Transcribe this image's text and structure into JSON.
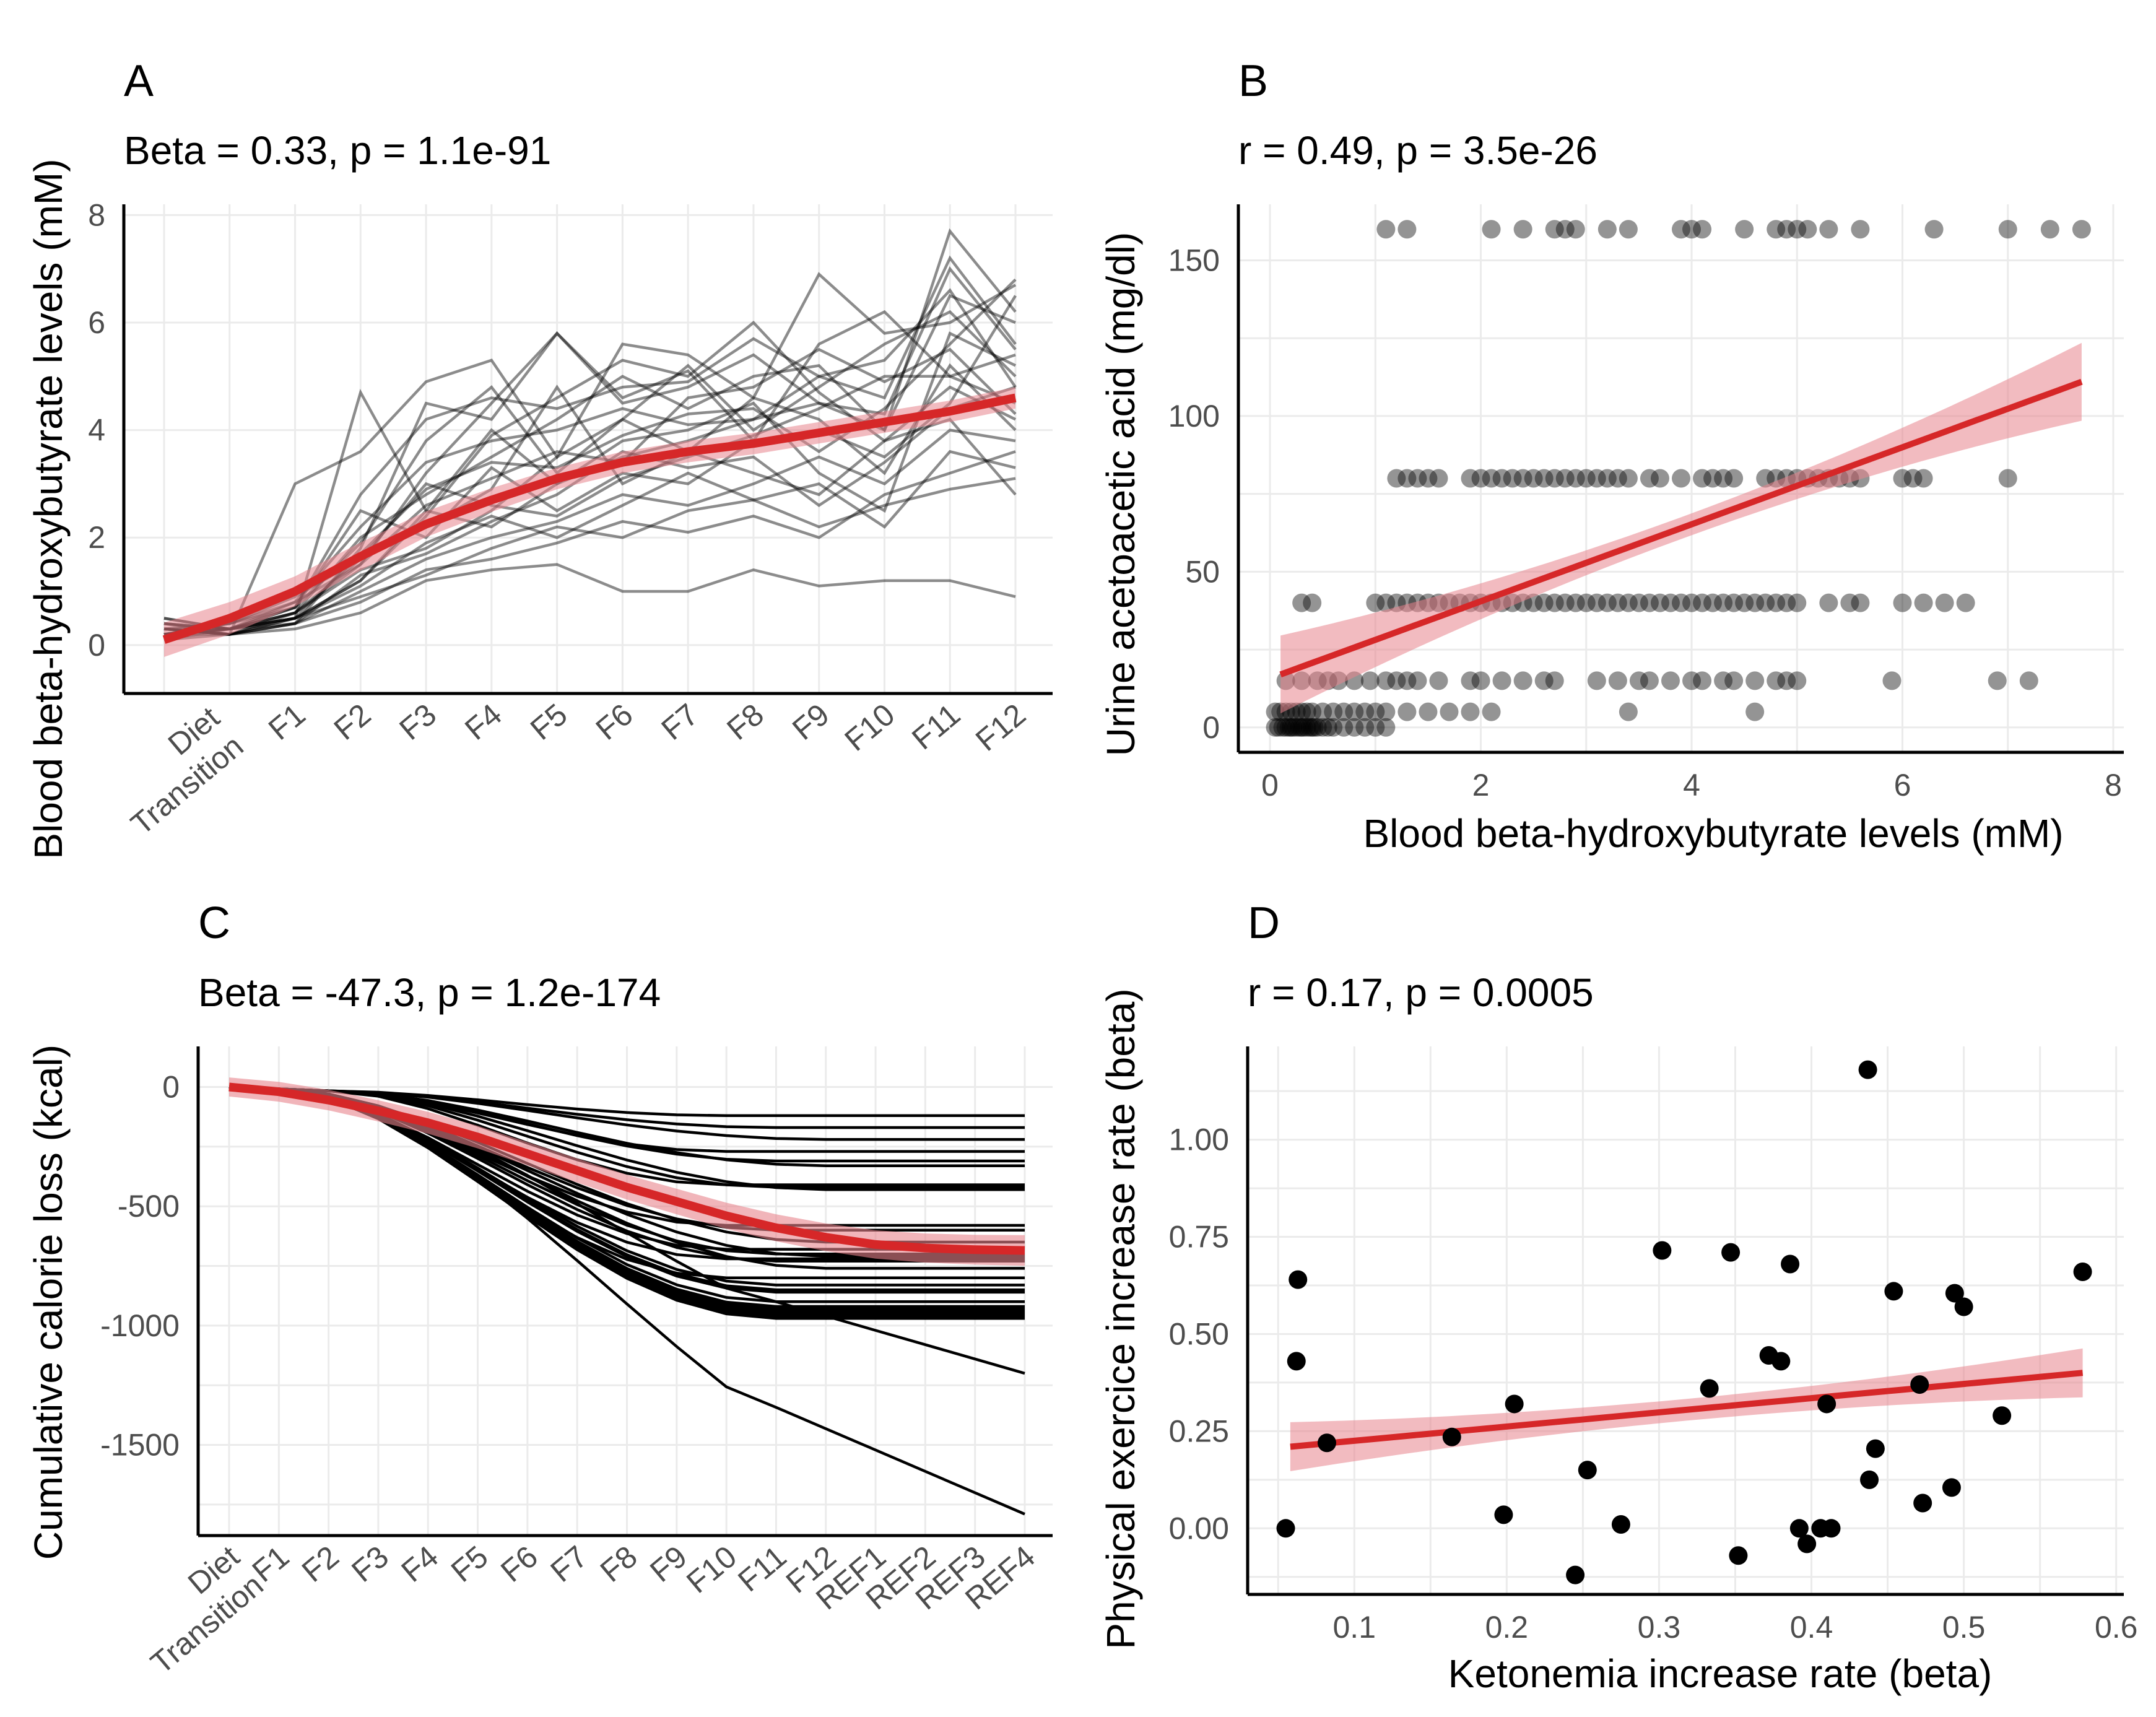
{
  "colors": {
    "fit": "#d62728",
    "band": "#e8848c",
    "points": "#000000",
    "grid": "#ebebeb"
  },
  "chart_data": [
    {
      "panel": "A",
      "type": "line",
      "stat": "Beta = 0.33, p = 1.1e-91",
      "xlabel": "",
      "ylabel": "Blood beta-hydroxybutyrate levels (mM)",
      "categories": [
        "Diet\nTransition",
        "F1",
        "F2",
        "F3",
        "F4",
        "F5",
        "F6",
        "F7",
        "F8",
        "F9",
        "F10",
        "F11",
        "F12"
      ],
      "yticks": [
        "0",
        "2",
        "4",
        "6",
        "8"
      ],
      "ylim": [
        -0.9,
        8.2
      ],
      "fit": [
        0.1,
        0.5,
        1.0,
        1.65,
        2.25,
        2.7,
        3.1,
        3.4,
        3.6,
        3.75,
        3.95,
        4.15,
        4.35,
        4.6
      ],
      "series": [
        [
          0.5,
          0.3,
          0.5,
          4.7,
          2.5,
          4.0,
          3.0,
          3.5,
          3.8,
          4.2,
          4.5,
          4.0,
          7.7,
          6.2
        ],
        [
          0.3,
          0.2,
          3.0,
          3.6,
          4.9,
          5.3,
          3.5,
          5.6,
          5.4,
          4.6,
          6.9,
          5.8,
          6.0,
          6.7
        ],
        [
          0.2,
          0.3,
          0.4,
          1.8,
          4.5,
          4.2,
          5.8,
          4.5,
          4.8,
          5.4,
          4.5,
          4.3,
          7.0,
          5.5
        ],
        [
          0.4,
          0.3,
          0.6,
          2.0,
          2.8,
          3.5,
          4.2,
          5.0,
          4.4,
          5.0,
          5.2,
          4.0,
          6.5,
          6.0
        ],
        [
          0.2,
          0.4,
          0.8,
          1.5,
          3.2,
          4.5,
          5.8,
          4.6,
          5.1,
          3.8,
          5.6,
          6.2,
          5.0,
          4.5
        ],
        [
          0.3,
          0.2,
          0.5,
          1.2,
          2.5,
          2.2,
          3.0,
          3.8,
          4.0,
          4.5,
          3.2,
          2.5,
          5.8,
          5.2
        ],
        [
          0.1,
          0.3,
          0.7,
          2.5,
          2.0,
          3.3,
          2.5,
          3.2,
          3.0,
          3.8,
          4.0,
          3.5,
          4.5,
          6.5
        ],
        [
          0.3,
          0.2,
          0.4,
          1.0,
          1.6,
          2.0,
          2.3,
          2.8,
          2.6,
          3.0,
          3.5,
          3.0,
          4.0,
          3.8
        ],
        [
          0.2,
          0.3,
          0.6,
          1.4,
          1.8,
          2.5,
          3.5,
          4.2,
          3.6,
          3.2,
          2.8,
          3.8,
          4.2,
          2.8
        ],
        [
          0.4,
          0.3,
          0.5,
          0.9,
          1.3,
          1.8,
          2.2,
          2.0,
          2.5,
          2.7,
          2.2,
          2.6,
          2.9,
          3.1
        ],
        [
          0.2,
          0.2,
          0.3,
          0.6,
          1.2,
          1.4,
          1.5,
          1.0,
          1.0,
          1.4,
          1.1,
          1.2,
          1.2,
          0.9
        ],
        [
          0.3,
          0.4,
          0.9,
          1.6,
          2.2,
          2.9,
          4.8,
          3.0,
          3.6,
          4.6,
          4.2,
          3.2,
          5.2,
          4.0
        ],
        [
          0.5,
          0.3,
          0.7,
          1.9,
          3.8,
          4.8,
          3.2,
          4.2,
          5.2,
          4.0,
          4.8,
          5.6,
          6.2,
          5.0
        ],
        [
          0.2,
          0.3,
          0.5,
          1.1,
          1.9,
          2.4,
          2.0,
          2.6,
          3.2,
          2.7,
          3.0,
          2.2,
          3.6,
          3.3
        ],
        [
          0.3,
          0.2,
          0.6,
          1.5,
          2.6,
          3.1,
          3.6,
          3.4,
          4.6,
          4.8,
          5.5,
          4.9,
          5.5,
          4.3
        ],
        [
          0.4,
          0.3,
          0.8,
          2.2,
          3.4,
          3.8,
          4.0,
          4.4,
          4.1,
          4.2,
          5.0,
          4.6,
          7.2,
          5.6
        ],
        [
          0.1,
          0.2,
          0.4,
          1.3,
          1.7,
          2.3,
          2.8,
          3.6,
          3.3,
          3.5,
          2.6,
          3.4,
          4.4,
          4.8
        ],
        [
          0.3,
          0.3,
          0.5,
          1.7,
          2.9,
          3.4,
          3.3,
          3.9,
          4.3,
          4.4,
          3.6,
          4.4,
          5.6,
          6.8
        ],
        [
          0.2,
          0.4,
          0.7,
          2.8,
          4.2,
          4.6,
          4.4,
          4.8,
          4.9,
          5.7,
          5.0,
          5.3,
          6.6,
          4.8
        ],
        [
          0.3,
          0.2,
          0.4,
          0.8,
          1.4,
          1.6,
          1.9,
          2.3,
          2.1,
          2.4,
          2.0,
          2.8,
          3.2,
          3.6
        ],
        [
          0.2,
          0.3,
          0.6,
          1.6,
          3.0,
          2.6,
          2.4,
          3.1,
          3.5,
          3.9,
          4.4,
          5.0,
          5.0,
          5.4
        ],
        [
          0.4,
          0.2,
          0.5,
          1.2,
          2.4,
          3.9,
          4.6,
          5.3,
          5.0,
          6.0,
          4.7,
          3.8,
          4.8,
          4.2
        ]
      ]
    },
    {
      "panel": "B",
      "type": "scatter",
      "stat": "r = 0.49, p = 3.5e-26",
      "xlabel": "Blood beta-hydroxybutyrate levels (mM)",
      "ylabel": "Urine acetoacetic acid (mg/dl)",
      "xticks": [
        "0",
        "2",
        "4",
        "6",
        "8"
      ],
      "yticks": [
        "0",
        "50",
        "100",
        "150"
      ],
      "xlim": [
        -0.3,
        8.1
      ],
      "ylim": [
        -8,
        168
      ],
      "fit": {
        "x": [
          0.1,
          7.7
        ],
        "y": [
          17,
          111
        ]
      },
      "levels": [
        {
          "y": 0,
          "x": [
            0.05,
            0.08,
            0.12,
            0.15,
            0.18,
            0.2,
            0.22,
            0.25,
            0.28,
            0.3,
            0.32,
            0.35,
            0.38,
            0.4,
            0.42,
            0.45,
            0.5,
            0.55,
            0.6,
            0.7,
            0.8,
            0.9,
            1.0,
            1.1
          ]
        },
        {
          "y": 5,
          "x": [
            0.05,
            0.1,
            0.15,
            0.2,
            0.25,
            0.3,
            0.35,
            0.4,
            0.5,
            0.6,
            0.7,
            0.8,
            0.9,
            1.0,
            1.1,
            1.3,
            1.5,
            1.7,
            1.9,
            2.1,
            3.4,
            4.6
          ]
        },
        {
          "y": 15,
          "x": [
            0.15,
            0.3,
            0.45,
            0.55,
            0.65,
            0.8,
            0.95,
            1.1,
            1.2,
            1.3,
            1.4,
            1.6,
            1.9,
            2.0,
            2.2,
            2.4,
            2.6,
            2.7,
            3.1,
            3.3,
            3.5,
            3.6,
            3.8,
            4.0,
            4.1,
            4.3,
            4.4,
            4.6,
            4.8,
            4.9,
            5.0,
            5.9,
            6.9,
            7.2
          ]
        },
        {
          "y": 40,
          "x": [
            0.3,
            0.4,
            1.0,
            1.1,
            1.2,
            1.3,
            1.4,
            1.5,
            1.6,
            1.7,
            1.8,
            1.9,
            2.0,
            2.1,
            2.2,
            2.3,
            2.4,
            2.5,
            2.6,
            2.7,
            2.8,
            2.9,
            3.0,
            3.1,
            3.2,
            3.3,
            3.4,
            3.5,
            3.6,
            3.7,
            3.8,
            3.9,
            4.0,
            4.1,
            4.2,
            4.3,
            4.4,
            4.5,
            4.6,
            4.7,
            4.8,
            4.9,
            5.0,
            5.3,
            5.5,
            5.6,
            6.0,
            6.2,
            6.4,
            6.6
          ]
        },
        {
          "y": 80,
          "x": [
            1.2,
            1.3,
            1.4,
            1.5,
            1.6,
            1.9,
            2.0,
            2.1,
            2.2,
            2.3,
            2.4,
            2.5,
            2.6,
            2.7,
            2.8,
            2.9,
            3.0,
            3.1,
            3.2,
            3.3,
            3.4,
            3.6,
            3.7,
            3.9,
            4.1,
            4.2,
            4.3,
            4.4,
            4.7,
            4.8,
            4.9,
            5.0,
            5.1,
            5.2,
            5.3,
            5.4,
            5.5,
            5.6,
            6.0,
            6.1,
            6.2,
            7.0
          ]
        },
        {
          "y": 160,
          "x": [
            1.1,
            1.3,
            2.1,
            2.4,
            2.7,
            2.8,
            2.9,
            3.2,
            3.4,
            3.9,
            4.0,
            4.1,
            4.5,
            4.8,
            4.9,
            5.0,
            5.1,
            5.3,
            5.6,
            6.3,
            7.0,
            7.4,
            7.7
          ]
        }
      ]
    },
    {
      "panel": "C",
      "type": "line",
      "stat": "Beta = -47.3, p = 1.2e-174",
      "xlabel": "",
      "ylabel": "Cumulative calorie loss (kcal)",
      "categories": [
        "Diet\nTransition",
        "F1",
        "F2",
        "F3",
        "F4",
        "F5",
        "F6",
        "F7",
        "F8",
        "F9",
        "F10",
        "F11",
        "F12",
        "REF1",
        "REF2",
        "REF3",
        "REF4"
      ],
      "yticks": [
        "0",
        "-500",
        "-1000",
        "-1500"
      ],
      "ylim": [
        -1880,
        170
      ],
      "fit": [
        0,
        -20,
        -55,
        -100,
        -150,
        -210,
        -280,
        -350,
        -420,
        -480,
        -540,
        -590,
        -630,
        -660,
        -675,
        -682,
        -685
      ],
      "finals": [
        -120,
        -170,
        -220,
        -270,
        -310,
        -330,
        -410,
        -420,
        -430,
        -580,
        -600,
        -650,
        -680,
        -700,
        -710,
        -720,
        -730,
        -760,
        -800,
        -830,
        -850,
        -860,
        -900,
        -920,
        -930,
        -940,
        -950,
        -960,
        -970,
        -1200,
        -1790
      ]
    },
    {
      "panel": "D",
      "type": "scatter",
      "stat": "r = 0.17, p = 0.0005",
      "xlabel": "Ketonemia increase rate (beta)",
      "ylabel": "Physical exercice increase rate (beta)",
      "xticks": [
        "0.1",
        "0.2",
        "0.3",
        "0.4",
        "0.5",
        "0.6"
      ],
      "yticks": [
        "0.00",
        "0.25",
        "0.50",
        "0.75",
        "1.00"
      ],
      "xlim": [
        0.03,
        0.605
      ],
      "ylim": [
        -0.17,
        1.24
      ],
      "fit": {
        "x": [
          0.058,
          0.578
        ],
        "y": [
          0.21,
          0.4
        ]
      },
      "points": [
        [
          0.055,
          0.0
        ],
        [
          0.063,
          0.64
        ],
        [
          0.062,
          0.43
        ],
        [
          0.082,
          0.22
        ],
        [
          0.164,
          0.235
        ],
        [
          0.198,
          0.035
        ],
        [
          0.205,
          0.32
        ],
        [
          0.245,
          -0.12
        ],
        [
          0.253,
          0.15
        ],
        [
          0.275,
          0.01
        ],
        [
          0.302,
          0.715
        ],
        [
          0.333,
          0.36
        ],
        [
          0.347,
          0.71
        ],
        [
          0.352,
          -0.07
        ],
        [
          0.372,
          0.445
        ],
        [
          0.38,
          0.43
        ],
        [
          0.386,
          0.68
        ],
        [
          0.392,
          0.0
        ],
        [
          0.397,
          -0.04
        ],
        [
          0.406,
          0.0
        ],
        [
          0.41,
          0.32
        ],
        [
          0.413,
          0.0
        ],
        [
          0.437,
          1.18
        ],
        [
          0.438,
          0.125
        ],
        [
          0.442,
          0.205
        ],
        [
          0.454,
          0.61
        ],
        [
          0.471,
          0.37
        ],
        [
          0.473,
          0.065
        ],
        [
          0.492,
          0.105
        ],
        [
          0.494,
          0.605
        ],
        [
          0.5,
          0.57
        ],
        [
          0.525,
          0.29
        ],
        [
          0.578,
          0.66
        ]
      ]
    }
  ]
}
